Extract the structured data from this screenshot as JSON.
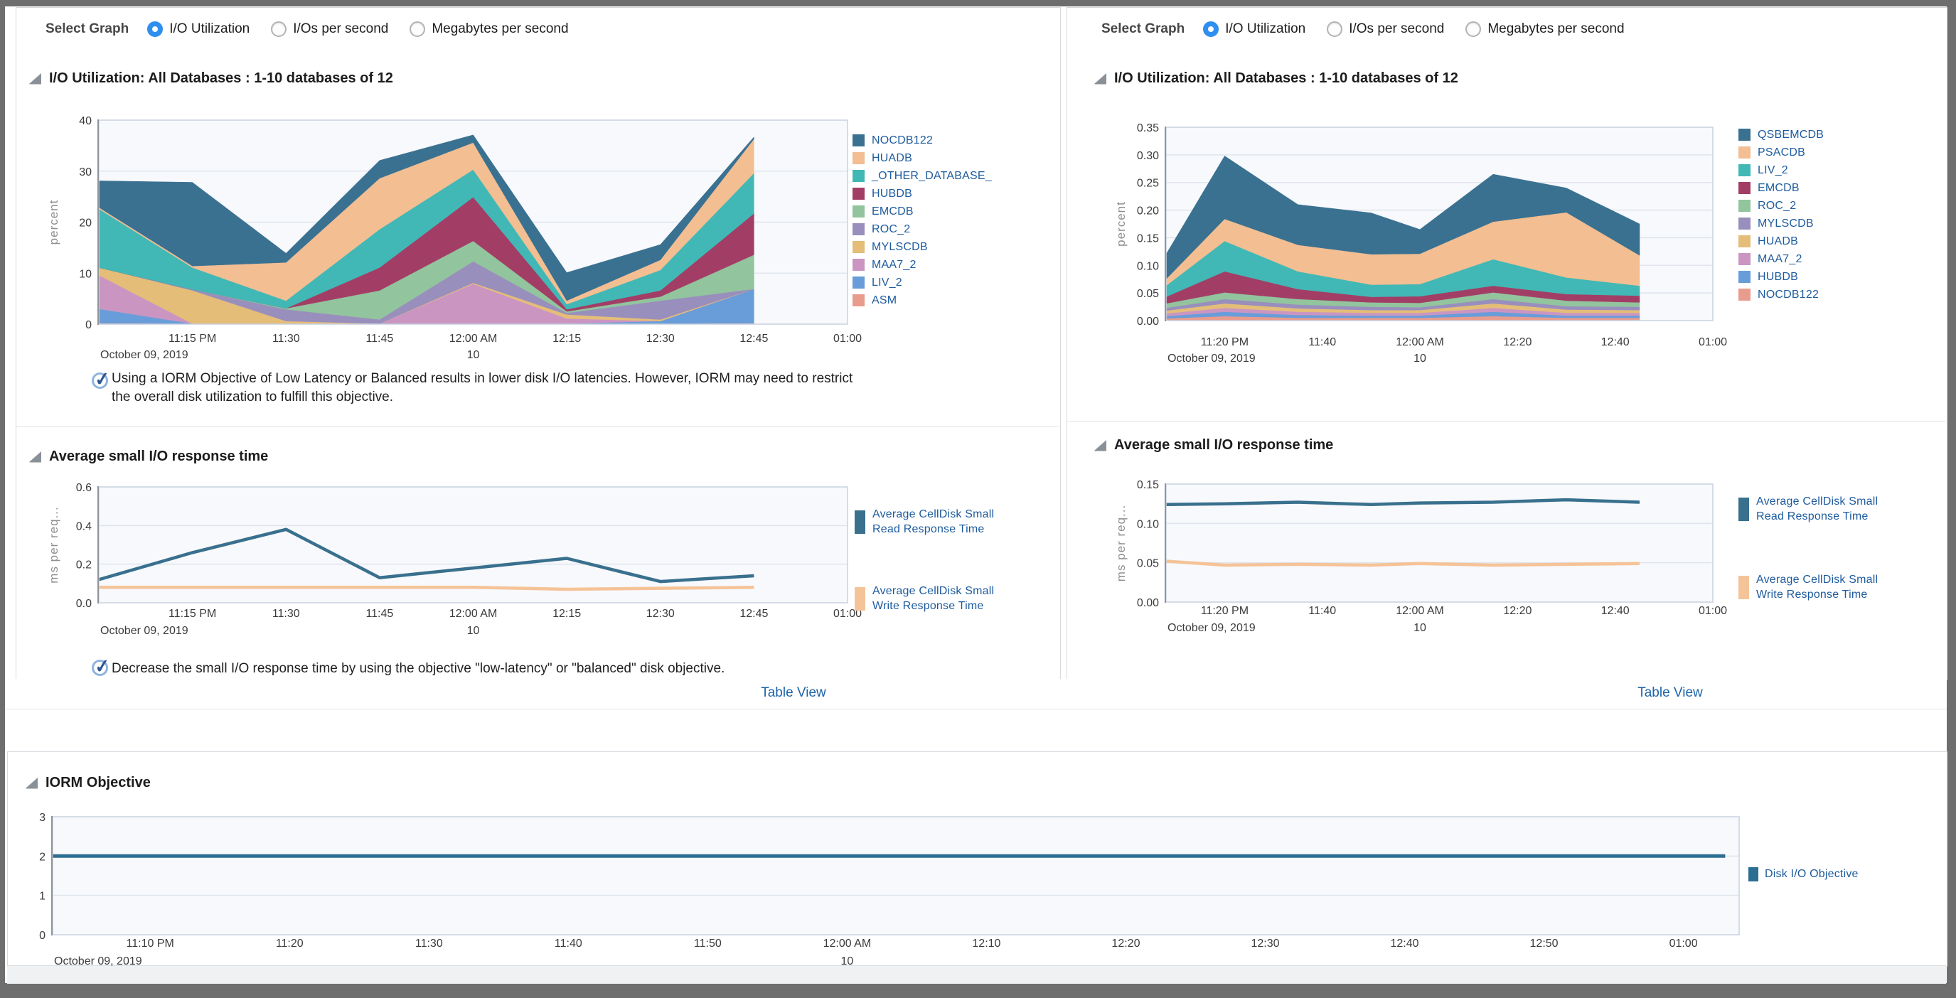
{
  "colors": {
    "accent_radio": "#2f8fef",
    "link": "#1c64a8",
    "legend_text": "#1d5b9e",
    "plot_bg": "#f8f9fc",
    "gridline": "#dfe5ee",
    "plot_border": "#c7d2e0"
  },
  "panels": {
    "left": {
      "select_graph": {
        "label": "Select Graph",
        "options": [
          {
            "label": "I/O Utilization",
            "selected": true
          },
          {
            "label": "I/Os per second",
            "selected": false
          },
          {
            "label": "Megabytes per second",
            "selected": false
          }
        ]
      },
      "util_title": "I/O Utilization: All Databases : 1-10 databases of 12",
      "message1": "Using a IORM Objective of Low Latency or Balanced results in lower disk I/O latencies. However, IORM may need to restrict\nthe overall disk utilization to fulfill this objective.",
      "resp_title": "Average small I/O response time",
      "message2": "Decrease the small I/O response time by using the objective \"low-latency\" or \"balanced\" disk objective.",
      "table_view": "Table View"
    },
    "right": {
      "select_graph": {
        "label": "Select Graph",
        "options": [
          {
            "label": "I/O Utilization",
            "selected": true
          },
          {
            "label": "I/Os per second",
            "selected": false
          },
          {
            "label": "Megabytes per second",
            "selected": false
          }
        ]
      },
      "util_title": "I/O Utilization: All Databases : 1-10 databases of 12",
      "resp_title": "Average small I/O response time",
      "table_view": "Table View"
    },
    "bottom": {
      "title": "IORM Objective"
    }
  },
  "chart_data": [
    {
      "key": "left_util",
      "type": "area",
      "title": "I/O Utilization: All Databases : 1-10 databases of 12",
      "ylabel": "percent",
      "ymax": 40,
      "yticks": [
        0,
        10,
        20,
        30,
        40
      ],
      "ydecimals": 0,
      "x_axis": {
        "start": "23:00",
        "end": "25:00",
        "ticks": [
          {
            "label": "11:15 PM",
            "t": "23:15"
          },
          {
            "label": "11:30",
            "t": "23:30"
          },
          {
            "label": "11:45",
            "t": "23:45"
          },
          {
            "label": "12:00 AM",
            "t": "24:00"
          },
          {
            "label": "12:15",
            "t": "24:15"
          },
          {
            "label": "12:30",
            "t": "24:30"
          },
          {
            "label": "12:45",
            "t": "24:45"
          },
          {
            "label": "01:00",
            "t": "25:00"
          }
        ],
        "date_label": "October 09, 2019",
        "day_label": "10",
        "day_under": "24:00"
      },
      "samples": [
        "23:00",
        "23:15",
        "23:30",
        "23:45",
        "24:00",
        "24:15",
        "24:30",
        "24:45"
      ],
      "series": [
        {
          "name": "ASM",
          "color": "#e89c8e",
          "values": [
            0.2,
            0.1,
            0.1,
            0.1,
            0.1,
            0.1,
            0.1,
            0.2
          ]
        },
        {
          "name": "LIV_2",
          "color": "#699dd9",
          "values": [
            2.8,
            0,
            0,
            0,
            0,
            0,
            0.5,
            6.7
          ]
        },
        {
          "name": "MAA7_2",
          "color": "#ca96c1",
          "values": [
            6.6,
            0,
            0,
            0,
            7.8,
            1.0,
            0,
            0
          ]
        },
        {
          "name": "MYLSCDB",
          "color": "#e4bd79",
          "values": [
            1.5,
            6.5,
            0.5,
            0,
            0.2,
            0.8,
            0.3,
            0
          ]
        },
        {
          "name": "ROC_2",
          "color": "#998fbd",
          "values": [
            0,
            0.2,
            2.3,
            0.8,
            4.2,
            0.3,
            3.7,
            0
          ]
        },
        {
          "name": "EMCDB",
          "color": "#92c49d",
          "values": [
            0,
            0,
            0.2,
            5.7,
            4.0,
            0.3,
            0.8,
            6.7
          ]
        },
        {
          "name": "HUBDB",
          "color": "#a23e66",
          "values": [
            0,
            0,
            0,
            4.5,
            8.6,
            0.4,
            1.2,
            8.1
          ]
        },
        {
          "name": "_OTHER_DATABASE_",
          "color": "#41b8b5",
          "values": [
            11.5,
            4.3,
            1.5,
            7.5,
            5.4,
            1.0,
            4.0,
            7.9
          ]
        },
        {
          "name": "HUADB",
          "color": "#f2be92",
          "values": [
            0.3,
            0.3,
            7.5,
            10,
            5.3,
            0.7,
            2.0,
            6.7
          ]
        },
        {
          "name": "NOCDB122",
          "color": "#3a7191",
          "values": [
            5.2,
            16.4,
            1.8,
            3.5,
            1.5,
            5.5,
            3.0,
            0.4
          ]
        }
      ]
    },
    {
      "key": "right_util",
      "type": "area",
      "title": "I/O Utilization: All Databases : 1-10 databases of 12",
      "ylabel": "percent",
      "ymax": 0.35,
      "yticks": [
        0,
        0.05,
        0.1,
        0.15,
        0.2,
        0.25,
        0.3,
        0.35
      ],
      "ydecimals": 2,
      "x_axis": {
        "start": "23:08",
        "end": "25:00",
        "ticks": [
          {
            "label": "11:20 PM",
            "t": "23:20"
          },
          {
            "label": "11:40",
            "t": "23:40"
          },
          {
            "label": "12:00 AM",
            "t": "24:00"
          },
          {
            "label": "12:20",
            "t": "24:20"
          },
          {
            "label": "12:40",
            "t": "24:40"
          },
          {
            "label": "01:00",
            "t": "25:00"
          }
        ],
        "date_label": "October 09, 2019",
        "day_label": "10",
        "day_under": "24:00"
      },
      "samples": [
        "23:08",
        "23:20",
        "23:35",
        "23:50",
        "24:00",
        "24:15",
        "24:30",
        "24:45"
      ],
      "series": [
        {
          "name": "NOCDB122",
          "color": "#e89c8e",
          "values": [
            0.004,
            0.008,
            0.005,
            0.005,
            0.005,
            0.008,
            0.005,
            0.005
          ]
        },
        {
          "name": "HUBDB",
          "color": "#699dd9",
          "values": [
            0.004,
            0.008,
            0.005,
            0.004,
            0.004,
            0.008,
            0.004,
            0.004
          ]
        },
        {
          "name": "MAA7_2",
          "color": "#ca96c1",
          "values": [
            0.005,
            0.007,
            0.006,
            0.005,
            0.005,
            0.007,
            0.005,
            0.005
          ]
        },
        {
          "name": "HUADB",
          "color": "#e4bd79",
          "values": [
            0.005,
            0.008,
            0.006,
            0.005,
            0.005,
            0.008,
            0.006,
            0.005
          ]
        },
        {
          "name": "MYLSCDB",
          "color": "#998fbd",
          "values": [
            0.005,
            0.008,
            0.007,
            0.006,
            0.005,
            0.008,
            0.006,
            0.006
          ]
        },
        {
          "name": "ROC_2",
          "color": "#92c49d",
          "values": [
            0.008,
            0.012,
            0.01,
            0.008,
            0.008,
            0.012,
            0.01,
            0.008
          ]
        },
        {
          "name": "EMCDB",
          "color": "#a23e66",
          "values": [
            0.012,
            0.038,
            0.018,
            0.01,
            0.012,
            0.012,
            0.012,
            0.012
          ]
        },
        {
          "name": "LIV_2",
          "color": "#41b8b5",
          "values": [
            0.02,
            0.055,
            0.032,
            0.022,
            0.022,
            0.048,
            0.03,
            0.018
          ]
        },
        {
          "name": "PSACDB",
          "color": "#f2be92",
          "values": [
            0.012,
            0.04,
            0.048,
            0.055,
            0.055,
            0.068,
            0.118,
            0.055
          ]
        },
        {
          "name": "QSBEMCDB",
          "color": "#3a7191",
          "values": [
            0.045,
            0.114,
            0.073,
            0.075,
            0.044,
            0.086,
            0.044,
            0.057
          ]
        }
      ]
    },
    {
      "key": "left_resp",
      "type": "line",
      "title": "Average small I/O response time",
      "ylabel": "ms per req...",
      "ymax": 0.6,
      "yticks": [
        0,
        0.2,
        0.4,
        0.6
      ],
      "ydecimals": 1,
      "x_axis": {
        "start": "23:00",
        "end": "25:00",
        "ticks": [
          {
            "label": "11:15 PM",
            "t": "23:15"
          },
          {
            "label": "11:30",
            "t": "23:30"
          },
          {
            "label": "11:45",
            "t": "23:45"
          },
          {
            "label": "12:00 AM",
            "t": "24:00"
          },
          {
            "label": "12:15",
            "t": "24:15"
          },
          {
            "label": "12:30",
            "t": "24:30"
          },
          {
            "label": "12:45",
            "t": "24:45"
          },
          {
            "label": "01:00",
            "t": "25:00"
          }
        ],
        "date_label": "October 09, 2019",
        "day_label": "10",
        "day_under": "24:00"
      },
      "samples": [
        "23:00",
        "23:15",
        "23:30",
        "23:45",
        "24:00",
        "24:15",
        "24:30",
        "24:45"
      ],
      "series": [
        {
          "name": "Average CellDisk Small Read Response Time",
          "label_lines": [
            "Average CellDisk Small",
            "Read Response Time"
          ],
          "color": "#39708e",
          "values": [
            0.12,
            0.26,
            0.38,
            0.13,
            0.18,
            0.23,
            0.11,
            0.14
          ]
        },
        {
          "name": "Average CellDisk Small Write Response Time",
          "label_lines": [
            "Average CellDisk Small",
            "Write Response Time"
          ],
          "color": "#f5c398",
          "values": [
            0.08,
            0.08,
            0.08,
            0.08,
            0.08,
            0.07,
            0.075,
            0.08
          ]
        }
      ]
    },
    {
      "key": "right_resp",
      "type": "line",
      "title": "Average small I/O response time",
      "ylabel": "ms per req...",
      "ymax": 0.15,
      "yticks": [
        0,
        0.05,
        0.1,
        0.15
      ],
      "ydecimals": 2,
      "x_axis": {
        "start": "23:08",
        "end": "25:00",
        "ticks": [
          {
            "label": "11:20 PM",
            "t": "23:20"
          },
          {
            "label": "11:40",
            "t": "23:40"
          },
          {
            "label": "12:00 AM",
            "t": "24:00"
          },
          {
            "label": "12:20",
            "t": "24:20"
          },
          {
            "label": "12:40",
            "t": "24:40"
          },
          {
            "label": "01:00",
            "t": "25:00"
          }
        ],
        "date_label": "October 09, 2019",
        "day_label": "10",
        "day_under": "24:00"
      },
      "samples": [
        "23:08",
        "23:20",
        "23:35",
        "23:50",
        "24:00",
        "24:15",
        "24:30",
        "24:45"
      ],
      "series": [
        {
          "name": "Average CellDisk Small Read Response Time",
          "label_lines": [
            "Average CellDisk Small",
            "Read Response Time"
          ],
          "color": "#39708e",
          "values": [
            0.124,
            0.125,
            0.127,
            0.124,
            0.126,
            0.127,
            0.13,
            0.127
          ]
        },
        {
          "name": "Average CellDisk Small Write Response Time",
          "label_lines": [
            "Average CellDisk Small",
            "Write Response Time"
          ],
          "color": "#f5c398",
          "values": [
            0.052,
            0.047,
            0.048,
            0.047,
            0.049,
            0.047,
            0.048,
            0.049
          ]
        }
      ]
    },
    {
      "key": "iorm",
      "type": "line",
      "title": "IORM Objective",
      "ylabel": "",
      "ymax": 3,
      "yticks": [
        0,
        1,
        2,
        3
      ],
      "ydecimals": 0,
      "x_axis": {
        "start": "23:03",
        "end": "25:04",
        "ticks": [
          {
            "label": "11:10 PM",
            "t": "23:10"
          },
          {
            "label": "11:20",
            "t": "23:20"
          },
          {
            "label": "11:30",
            "t": "23:30"
          },
          {
            "label": "11:40",
            "t": "23:40"
          },
          {
            "label": "11:50",
            "t": "23:50"
          },
          {
            "label": "12:00 AM",
            "t": "24:00"
          },
          {
            "label": "12:10",
            "t": "24:10"
          },
          {
            "label": "12:20",
            "t": "24:20"
          },
          {
            "label": "12:30",
            "t": "24:30"
          },
          {
            "label": "12:40",
            "t": "24:40"
          },
          {
            "label": "12:50",
            "t": "24:50"
          },
          {
            "label": "01:00",
            "t": "25:00"
          }
        ],
        "date_label": "October 09, 2019",
        "day_label": "10",
        "day_under": "24:00"
      },
      "samples": [
        "23:03",
        "25:03"
      ],
      "series": [
        {
          "name": "Disk I/O Objective",
          "label_lines": [
            "Disk I/O Objective"
          ],
          "color": "#2c6e92",
          "values": [
            2,
            2
          ]
        }
      ]
    }
  ]
}
